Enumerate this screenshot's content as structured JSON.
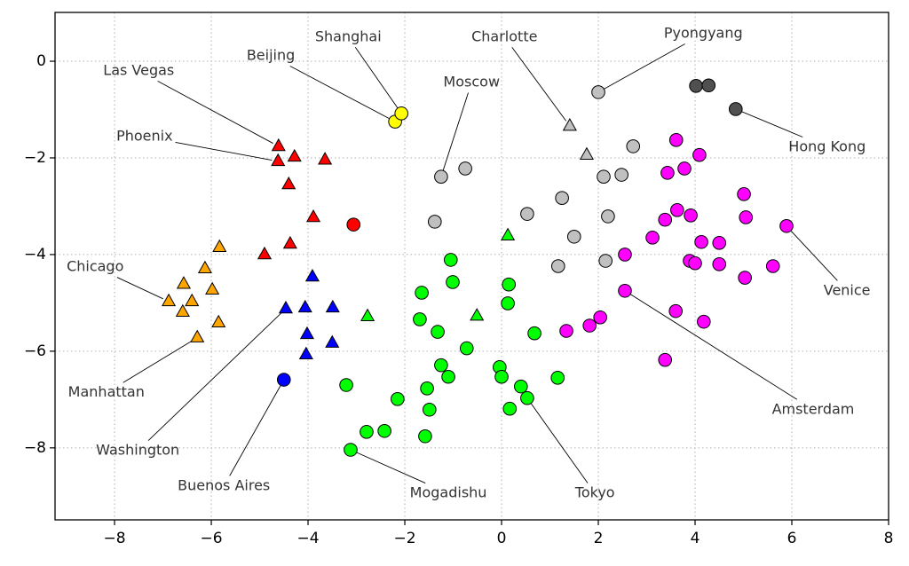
{
  "chart_data": {
    "type": "scatter",
    "xlim": [
      -9.23,
      8
    ],
    "ylim": [
      -9.49,
      1.01
    ],
    "xticks": [
      {
        "value": -8,
        "label": "−8"
      },
      {
        "value": -6,
        "label": "−6"
      },
      {
        "value": -4,
        "label": "−4"
      },
      {
        "value": -2,
        "label": "−2"
      },
      0,
      2,
      4,
      6,
      8
    ],
    "yticks": [
      0,
      {
        "value": -2,
        "label": "−2"
      },
      {
        "value": -4,
        "label": "−4"
      },
      {
        "value": -6,
        "label": "−6"
      },
      {
        "value": -8,
        "label": "−8"
      }
    ],
    "grid": true,
    "series": [
      {
        "color": "#ffff00",
        "marker": "circle",
        "x": [
          -2.2,
          -2.07
        ],
        "y": [
          -1.25,
          -1.08
        ]
      },
      {
        "color": "#ff0000",
        "marker": "triangle",
        "x": [
          -4.61,
          -4.62,
          -4.28,
          -3.65,
          -4.4,
          -3.89,
          -4.37,
          -4.9
        ],
        "y": [
          -1.76,
          -2.07,
          -1.98,
          -2.04,
          -2.55,
          -3.23,
          -3.78,
          -4.0
        ]
      },
      {
        "color": "#ff0000",
        "marker": "circle",
        "x": [
          -3.06
        ],
        "y": [
          -3.38
        ]
      },
      {
        "color": "#ffa500",
        "marker": "triangle",
        "x": [
          -5.83,
          -6.13,
          -6.57,
          -5.98,
          -6.88,
          -6.4,
          -6.59,
          -5.85,
          -6.29
        ],
        "y": [
          -3.85,
          -4.29,
          -4.61,
          -4.73,
          -4.97,
          -4.97,
          -5.19,
          -5.41,
          -5.72
        ]
      },
      {
        "color": "#0000ff",
        "marker": "triangle",
        "x": [
          -3.91,
          -4.46,
          -4.06,
          -3.49,
          -4.02,
          -3.5,
          -4.04
        ],
        "y": [
          -4.46,
          -5.12,
          -5.1,
          -5.1,
          -5.65,
          -5.83,
          -6.07
        ]
      },
      {
        "color": "#0000ff",
        "marker": "circle",
        "x": [
          -4.5
        ],
        "y": [
          -6.59
        ]
      },
      {
        "color": "#00ff00",
        "marker": "triangle",
        "x": [
          0.13,
          -2.77,
          -0.51
        ],
        "y": [
          -3.61,
          -5.28,
          -5.27
        ]
      },
      {
        "color": "#00ff00",
        "marker": "circle",
        "x": [
          -1.05,
          -1.01,
          -1.65,
          0.15,
          0.13,
          -1.69,
          -1.32,
          0.68,
          -0.72,
          -1.25,
          -1.1,
          -0.04,
          0.0,
          1.16,
          -3.21,
          -1.54,
          0.4,
          -2.15,
          0.53,
          -1.49,
          0.17,
          -2.79,
          -2.42,
          -1.58,
          -3.12
        ],
        "y": [
          -4.11,
          -4.57,
          -4.79,
          -4.62,
          -5.01,
          -5.34,
          -5.6,
          -5.63,
          -5.94,
          -6.29,
          -6.53,
          -6.33,
          -6.53,
          -6.55,
          -6.7,
          -6.77,
          -6.73,
          -6.99,
          -6.97,
          -7.21,
          -7.19,
          -7.67,
          -7.65,
          -7.76,
          -8.04
        ]
      },
      {
        "color": "#c0c0c0",
        "marker": "circle",
        "x": [
          2.0,
          2.72,
          -0.75,
          -1.25,
          2.11,
          2.48,
          1.25,
          0.53,
          2.2,
          -1.38,
          1.5,
          2.15,
          1.17
        ],
        "y": [
          -0.64,
          -1.76,
          -2.22,
          -2.39,
          -2.39,
          -2.35,
          -2.83,
          -3.16,
          -3.21,
          -3.32,
          -3.63,
          -4.13,
          -4.24
        ]
      },
      {
        "color": "#c0c0c0",
        "marker": "triangle",
        "x": [
          1.41,
          1.76
        ],
        "y": [
          -1.34,
          -1.94
        ]
      },
      {
        "color": "#505050",
        "marker": "circle",
        "x": [
          4.02,
          4.28,
          4.84
        ],
        "y": [
          -0.51,
          -0.5,
          -0.99
        ]
      },
      {
        "color": "#ff00ff",
        "marker": "circle",
        "x": [
          3.61,
          4.09,
          3.78,
          3.43,
          5.01,
          3.63,
          3.38,
          3.91,
          5.05,
          5.89,
          3.12,
          4.13,
          4.5,
          2.55,
          3.89,
          4.0,
          4.5,
          5.61,
          5.03,
          2.55,
          3.6,
          2.04,
          1.82,
          1.34,
          4.18,
          3.38
        ],
        "y": [
          -1.63,
          -1.94,
          -2.22,
          -2.31,
          -2.75,
          -3.08,
          -3.28,
          -3.19,
          -3.23,
          -3.41,
          -3.65,
          -3.74,
          -3.76,
          -4.0,
          -4.13,
          -4.18,
          -4.2,
          -4.24,
          -4.48,
          -4.75,
          -5.17,
          -5.3,
          -5.47,
          -5.58,
          -5.39,
          -6.18
        ]
      }
    ],
    "annotations": [
      {
        "text": "Shanghai",
        "xy": [
          -2.07,
          -1.08
        ],
        "xytext": [
          -3.17,
          0.5
        ]
      },
      {
        "text": "Beijing",
        "xy": [
          -2.2,
          -1.25
        ],
        "xytext": [
          -4.77,
          0.11
        ]
      },
      {
        "text": "Las Vegas",
        "xy": [
          -4.61,
          -1.76
        ],
        "xytext": [
          -7.5,
          -0.2
        ]
      },
      {
        "text": "Phoenix",
        "xy": [
          -4.62,
          -2.07
        ],
        "xytext": [
          -7.38,
          -1.56
        ]
      },
      {
        "text": "Charlotte",
        "xy": [
          1.41,
          -1.34
        ],
        "xytext": [
          0.06,
          0.5
        ]
      },
      {
        "text": "Pyongyang",
        "xy": [
          2.0,
          -0.64
        ],
        "xytext": [
          4.17,
          0.57
        ]
      },
      {
        "text": "Moscow",
        "xy": [
          -1.25,
          -2.39
        ],
        "xytext": [
          -0.62,
          -0.44
        ]
      },
      {
        "text": "Hong Kong",
        "xy": [
          4.84,
          -0.99
        ],
        "xytext": [
          6.73,
          -1.78
        ]
      },
      {
        "text": "Chicago",
        "xy": [
          -6.88,
          -4.97
        ],
        "xytext": [
          -8.4,
          -4.26
        ]
      },
      {
        "text": "Venice",
        "xy": [
          5.89,
          -3.41
        ],
        "xytext": [
          7.14,
          -4.75
        ]
      },
      {
        "text": "Manhattan",
        "xy": [
          -6.29,
          -5.72
        ],
        "xytext": [
          -8.17,
          -6.86
        ]
      },
      {
        "text": "Amsterdam",
        "xy": [
          2.55,
          -4.75
        ],
        "xytext": [
          6.44,
          -7.21
        ]
      },
      {
        "text": "Washington",
        "xy": [
          -4.46,
          -5.12
        ],
        "xytext": [
          -7.52,
          -8.06
        ]
      },
      {
        "text": "Buenos Aires",
        "xy": [
          -4.5,
          -6.59
        ],
        "xytext": [
          -5.74,
          -8.79
        ]
      },
      {
        "text": "Mogadishu",
        "xy": [
          -3.12,
          -8.04
        ],
        "xytext": [
          -1.1,
          -8.94
        ]
      },
      {
        "text": "Tokyo",
        "xy": [
          0.53,
          -6.97
        ],
        "xytext": [
          1.93,
          -8.94
        ]
      }
    ]
  }
}
